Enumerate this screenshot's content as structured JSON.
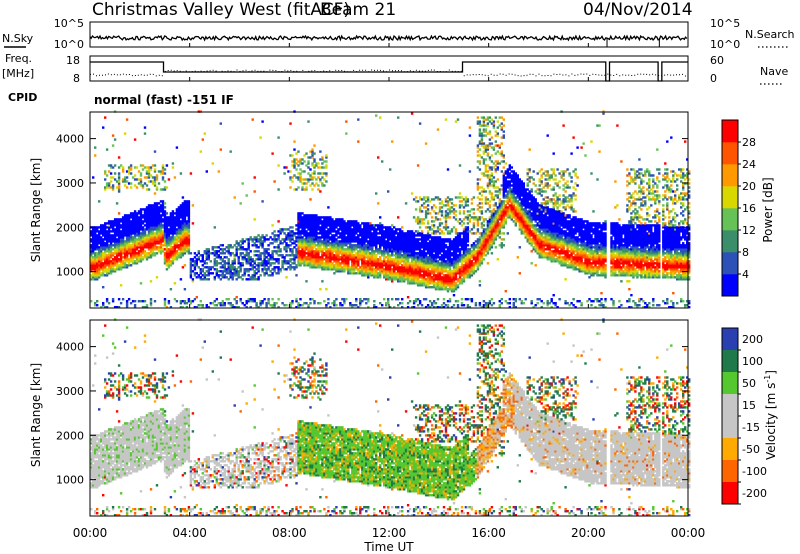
{
  "header": {
    "station": "Christmas Valley West (fitACF)",
    "beam": "Beam 21",
    "date": "04/Nov/2014"
  },
  "status_panel": {
    "left_label": "N.Sky",
    "left_ticks": [
      "10^5",
      "10^0"
    ],
    "right_ticks": [
      "10^5",
      "10^0"
    ],
    "right_label": "N.Search",
    "right_legend_line": "dotted"
  },
  "freq_panel": {
    "left_label_1": "Freq.",
    "left_label_2": "[MHz]",
    "left_ticks": [
      "18",
      "8"
    ],
    "right_ticks": [
      "60",
      "0"
    ],
    "right_label": "Nave",
    "right_legend_line": "dotted"
  },
  "cpid": {
    "label": "CPID",
    "text": "normal (fast) -151 IF"
  },
  "colors": {
    "power_scale": [
      "#0000ff",
      "#2c52b8",
      "#3a8f6a",
      "#66c257",
      "#d8d800",
      "#ff9900",
      "#ff5500",
      "#ff0000"
    ],
    "velocity_scale": [
      "#2a3fb0",
      "#1e7a4a",
      "#55c830",
      "#c6c6c6",
      "#c6c6c6",
      "#ffaa00",
      "#ff6600",
      "#ff0000"
    ],
    "ground_scatter": "#c6c6c6"
  },
  "chart_data": [
    {
      "type": "heatmap",
      "title": "",
      "quantity": "Power",
      "ylabel": "Slant Range [km]",
      "xlabel": "",
      "x_ticks": [
        "00:00",
        "04:00",
        "08:00",
        "12:00",
        "16:00",
        "20:00",
        "00:00"
      ],
      "y_ticks": [
        "1000",
        "2000",
        "3000",
        "4000"
      ],
      "ylim": [
        180,
        4600
      ],
      "xlim_hours": [
        0,
        24
      ],
      "colorbar": {
        "label": "Power [dB]",
        "ticks": [
          "4",
          "8",
          "12",
          "16",
          "20",
          "24",
          "28"
        ]
      },
      "echo_band": [
        {
          "hour": 0.2,
          "range_km": 1100
        },
        {
          "hour": 2.9,
          "range_km": 1700
        },
        {
          "hour": 3.0,
          "range_km": 1300
        },
        {
          "hour": 3.8,
          "range_km": 1700
        },
        {
          "hour": 8.5,
          "range_km": 1400
        },
        {
          "hour": 12.0,
          "range_km": 1100
        },
        {
          "hour": 14.5,
          "range_km": 800
        },
        {
          "hour": 15.5,
          "range_km": 1300
        },
        {
          "hour": 16.8,
          "range_km": 2500
        },
        {
          "hour": 18.0,
          "range_km": 1600
        },
        {
          "hour": 20.0,
          "range_km": 1200
        },
        {
          "hour": 23.9,
          "range_km": 1100
        }
      ]
    },
    {
      "type": "heatmap",
      "title": "",
      "quantity": "Velocity",
      "ylabel": "Slant Range [km]",
      "xlabel": "Time UT",
      "x_ticks": [
        "00:00",
        "04:00",
        "08:00",
        "12:00",
        "16:00",
        "20:00",
        "00:00"
      ],
      "y_ticks": [
        "1000",
        "2000",
        "3000",
        "4000"
      ],
      "ylim": [
        180,
        4600
      ],
      "xlim_hours": [
        0,
        24
      ],
      "colorbar": {
        "label": "Velocity [m s^-1]",
        "ticks": [
          "200",
          "100",
          "50",
          "15",
          "-15",
          "-50",
          "-100",
          "-200"
        ]
      },
      "ground_scatter_color": "grey"
    }
  ]
}
